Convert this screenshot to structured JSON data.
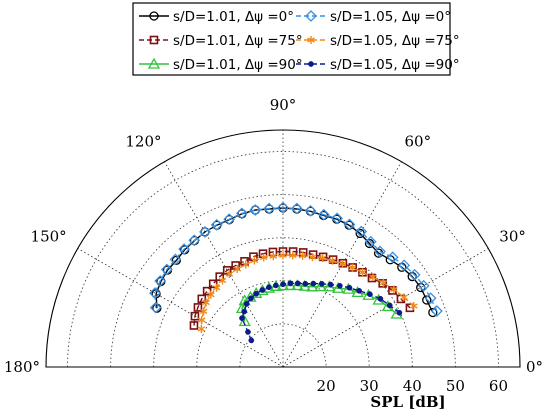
{
  "chart_data": {
    "type": "polar-scatter",
    "xlabel": "SPL [dB]",
    "r_range": [
      10,
      65
    ],
    "r_ticks": [
      20,
      30,
      40,
      50,
      60
    ],
    "angle_ticks": [
      {
        "deg": 0,
        "label": "0°"
      },
      {
        "deg": 30,
        "label": "30°"
      },
      {
        "deg": 60,
        "label": "60°"
      },
      {
        "deg": 90,
        "label": "90°"
      },
      {
        "deg": 120,
        "label": "120°"
      },
      {
        "deg": 150,
        "label": "150°"
      },
      {
        "deg": 180,
        "label": "180°"
      }
    ],
    "grid": true,
    "legend": "top-center",
    "series": [
      {
        "name": "s/D=1.01, Δψ =0°",
        "color": "#000000",
        "marker": "circle",
        "line": "solid",
        "theta": [
          20,
          25,
          30,
          35,
          40,
          45,
          50,
          55,
          60,
          65,
          70,
          75,
          80,
          85,
          90,
          95,
          100,
          105,
          110,
          115,
          120,
          125,
          130,
          135,
          140,
          145,
          150,
          155
        ],
        "r": [
          47.0,
          46.8,
          46.9,
          46.6,
          46.0,
          45.2,
          44.5,
          45.0,
          45.8,
          46.3,
          46.5,
          46.4,
          46.7,
          46.8,
          46.9,
          46.8,
          47.0,
          46.8,
          46.4,
          46.3,
          46.2,
          45.8,
          45.5,
          45.0,
          45.0,
          44.6,
          44.0,
          42.3
        ]
      },
      {
        "name": "s/D=1.05, Δψ =0°",
        "color": "#3a8fe0",
        "marker": "diamond",
        "line": "dashed",
        "theta": [
          20,
          25,
          30,
          35,
          40,
          45,
          50,
          55,
          60,
          65,
          70,
          75,
          80,
          85,
          90,
          95,
          100,
          105,
          110,
          115,
          120,
          125,
          130,
          135,
          140,
          145,
          150,
          155
        ],
        "r": [
          48.0,
          47.8,
          47.7,
          47.3,
          46.7,
          46.0,
          45.0,
          45.5,
          46.3,
          46.5,
          46.7,
          46.6,
          46.8,
          46.9,
          47.0,
          46.9,
          47.0,
          46.9,
          46.5,
          46.4,
          46.2,
          45.9,
          45.7,
          45.3,
          45.2,
          44.8,
          44.3,
          42.6
        ]
      },
      {
        "name": "s/D=1.01, Δψ =75°",
        "color": "#7a1010",
        "marker": "square",
        "line": "dashed",
        "theta": [
          25,
          30,
          35,
          40,
          45,
          50,
          55,
          60,
          65,
          70,
          75,
          80,
          85,
          90,
          95,
          100,
          105,
          110,
          115,
          120,
          125,
          130,
          135,
          140,
          145,
          150,
          155
        ],
        "r": [
          42.5,
          41.6,
          41.0,
          40.2,
          39.2,
          38.7,
          38.2,
          37.8,
          37.5,
          37.2,
          37.0,
          37.0,
          36.9,
          36.8,
          36.8,
          36.7,
          36.5,
          36.1,
          36.0,
          35.9,
          35.6,
          35.2,
          34.9,
          34.6,
          34.1,
          33.6,
          32.8
        ]
      },
      {
        "name": "s/D=1.05, Δψ =75°",
        "color": "#f08a1c",
        "marker": "asterisk",
        "line": "dashed",
        "theta": [
          25,
          30,
          35,
          40,
          45,
          50,
          55,
          60,
          65,
          70,
          75,
          80,
          85,
          90,
          95,
          100,
          105,
          110,
          115,
          120,
          125,
          130,
          135,
          140,
          145,
          150,
          155
        ],
        "r": [
          43.5,
          42.4,
          41.4,
          40.4,
          39.5,
          38.7,
          38.1,
          37.6,
          37.2,
          36.9,
          36.4,
          36.2,
          36.0,
          35.9,
          35.8,
          35.8,
          35.6,
          35.3,
          35.1,
          34.9,
          34.5,
          34.0,
          33.7,
          33.3,
          32.5,
          31.8,
          30.9
        ]
      },
      {
        "name": "s/D=1.01, Δψ =90°",
        "color": "#33c33c",
        "marker": "triangle",
        "line": "solid",
        "theta": [
          25,
          30,
          35,
          40,
          45,
          50,
          55,
          60,
          65,
          70,
          75,
          80,
          85,
          90,
          95,
          100,
          105,
          110,
          115,
          120,
          125,
          130
        ],
        "r": [
          39.1,
          38.1,
          37.1,
          35.9,
          34.5,
          33.6,
          32.3,
          31.5,
          30.6,
          29.8,
          29.4,
          29.2,
          29.0,
          28.9,
          28.8,
          28.6,
          28.4,
          28.2,
          27.9,
          27.8,
          26.6,
          23.8
        ]
      },
      {
        "name": "s/D=1.05, Δψ =90°",
        "color": "#0c1a8c",
        "marker": "dot",
        "line": "dashed",
        "theta": [
          25,
          30,
          35,
          40,
          45,
          50,
          55,
          60,
          65,
          70,
          75,
          80,
          85,
          90,
          95,
          100,
          105,
          110,
          115,
          120,
          125,
          130,
          135,
          140
        ],
        "r": [
          39.8,
          38.6,
          37.6,
          36.3,
          35.0,
          34.0,
          33.0,
          32.1,
          31.3,
          30.6,
          30.0,
          29.7,
          29.5,
          29.2,
          29.0,
          28.8,
          28.5,
          28.1,
          27.6,
          26.9,
          25.7,
          24.8,
          21.5,
          19.6
        ]
      }
    ]
  }
}
